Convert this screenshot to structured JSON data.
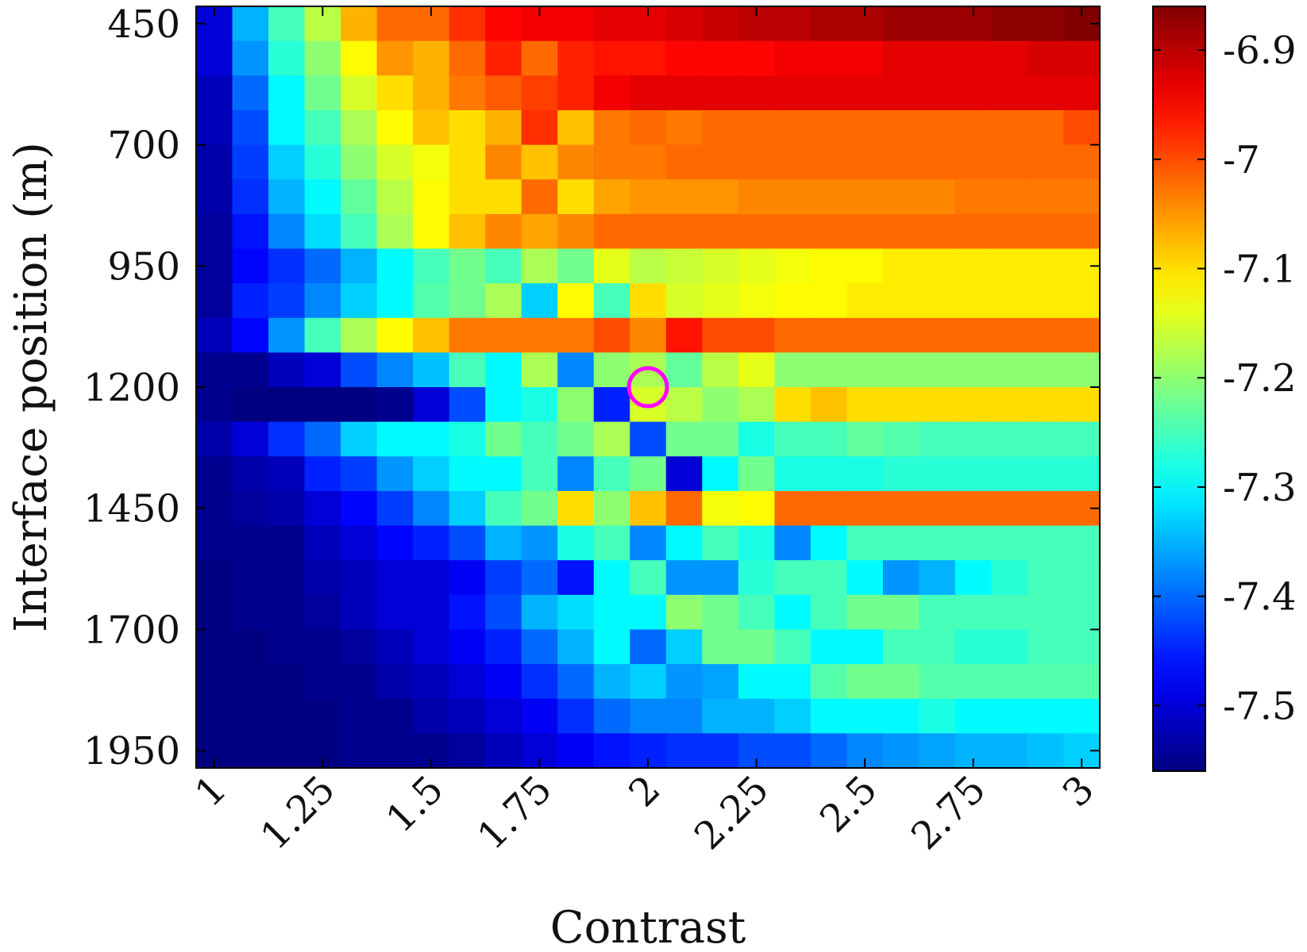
{
  "chart_data": {
    "type": "heatmap",
    "xlabel": "Contrast",
    "ylabel": "Interface position (m)",
    "x_range": [
      1,
      3
    ],
    "y_range": [
      450,
      1950
    ],
    "x_ticks": [
      {
        "value": 1,
        "label": "1"
      },
      {
        "value": 1.25,
        "label": "1.25"
      },
      {
        "value": 1.5,
        "label": "1.5"
      },
      {
        "value": 1.75,
        "label": "1.75"
      },
      {
        "value": 2,
        "label": "2"
      },
      {
        "value": 2.25,
        "label": "2.25"
      },
      {
        "value": 2.5,
        "label": "2.5"
      },
      {
        "value": 2.75,
        "label": "2.75"
      },
      {
        "value": 3,
        "label": "3"
      }
    ],
    "y_ticks": [
      {
        "value": 450,
        "label": "450"
      },
      {
        "value": 700,
        "label": "700"
      },
      {
        "value": 950,
        "label": "950"
      },
      {
        "value": 1200,
        "label": "1200"
      },
      {
        "value": 1450,
        "label": "1450"
      },
      {
        "value": 1700,
        "label": "1700"
      },
      {
        "value": 1950,
        "label": "1950"
      }
    ],
    "x_values": [
      1.0,
      1.0833,
      1.1667,
      1.25,
      1.3333,
      1.4167,
      1.5,
      1.5833,
      1.6667,
      1.75,
      1.8333,
      1.9167,
      2.0,
      2.0833,
      2.1667,
      2.25,
      2.3333,
      2.4167,
      2.5,
      2.5833,
      2.6667,
      2.75,
      2.8333,
      2.9167,
      3.0
    ],
    "y_values": [
      450,
      521.4,
      592.9,
      664.3,
      735.7,
      807.1,
      878.6,
      950,
      1021.4,
      1092.9,
      1164.3,
      1235.7,
      1307.1,
      1378.6,
      1450,
      1521.4,
      1592.9,
      1664.3,
      1735.7,
      1807.1,
      1878.6,
      1950
    ],
    "colorbar": {
      "colormap": "jet",
      "range": [
        -7.56,
        -6.86
      ],
      "ticks": [
        {
          "value": -6.9,
          "label": "-6.9"
        },
        {
          "value": -7.0,
          "label": "-7"
        },
        {
          "value": -7.1,
          "label": "-7.1"
        },
        {
          "value": -7.2,
          "label": "-7.2"
        },
        {
          "value": -7.3,
          "label": "-7.3"
        },
        {
          "value": -7.4,
          "label": "-7.4"
        },
        {
          "value": -7.5,
          "label": "-7.5"
        }
      ]
    },
    "marker": {
      "x": 2.0,
      "y": 1200,
      "shape": "circle",
      "color": "#ff00ff"
    },
    "z": [
      [
        -7.5,
        -7.35,
        -7.25,
        -7.17,
        -7.07,
        -7.02,
        -7.02,
        -6.98,
        -6.95,
        -6.94,
        -6.94,
        -6.93,
        -6.93,
        -6.92,
        -6.91,
        -6.9,
        -6.9,
        -6.89,
        -6.89,
        -6.88,
        -6.88,
        -6.88,
        -6.87,
        -6.87,
        -6.86
      ],
      [
        -7.5,
        -7.37,
        -7.27,
        -7.2,
        -7.12,
        -7.05,
        -7.07,
        -7.02,
        -6.97,
        -7.02,
        -6.97,
        -6.96,
        -6.96,
        -6.95,
        -6.95,
        -6.95,
        -6.94,
        -6.94,
        -6.94,
        -6.93,
        -6.93,
        -6.93,
        -6.93,
        -6.92,
        -6.92
      ],
      [
        -7.52,
        -7.4,
        -7.3,
        -7.22,
        -7.15,
        -7.1,
        -7.07,
        -7.03,
        -7.01,
        -6.99,
        -6.97,
        -6.94,
        -6.93,
        -6.93,
        -6.93,
        -6.93,
        -6.93,
        -6.93,
        -6.93,
        -6.93,
        -6.93,
        -6.93,
        -6.93,
        -6.93,
        -6.93
      ],
      [
        -7.52,
        -7.42,
        -7.3,
        -7.25,
        -7.18,
        -7.12,
        -7.08,
        -7.1,
        -7.07,
        -6.98,
        -7.08,
        -7.03,
        -7.02,
        -7.03,
        -7.02,
        -7.02,
        -7.02,
        -7.02,
        -7.02,
        -7.02,
        -7.02,
        -7.02,
        -7.02,
        -7.02,
        -7.0
      ],
      [
        -7.53,
        -7.43,
        -7.33,
        -7.27,
        -7.2,
        -7.15,
        -7.13,
        -7.1,
        -7.04,
        -7.08,
        -7.04,
        -7.03,
        -7.03,
        -7.02,
        -7.02,
        -7.02,
        -7.02,
        -7.02,
        -7.02,
        -7.02,
        -7.02,
        -7.02,
        -7.02,
        -7.02,
        -7.02
      ],
      [
        -7.53,
        -7.44,
        -7.35,
        -7.3,
        -7.23,
        -7.17,
        -7.12,
        -7.1,
        -7.1,
        -7.02,
        -7.1,
        -7.06,
        -7.05,
        -7.05,
        -7.05,
        -7.04,
        -7.04,
        -7.04,
        -7.04,
        -7.04,
        -7.04,
        -7.03,
        -7.03,
        -7.03,
        -7.03
      ],
      [
        -7.54,
        -7.46,
        -7.38,
        -7.32,
        -7.25,
        -7.18,
        -7.12,
        -7.08,
        -7.04,
        -7.06,
        -7.04,
        -7.02,
        -7.02,
        -7.02,
        -7.02,
        -7.02,
        -7.02,
        -7.02,
        -7.02,
        -7.02,
        -7.02,
        -7.02,
        -7.02,
        -7.02,
        -7.02
      ],
      [
        -7.54,
        -7.47,
        -7.44,
        -7.4,
        -7.35,
        -7.3,
        -7.25,
        -7.22,
        -7.25,
        -7.18,
        -7.22,
        -7.14,
        -7.17,
        -7.16,
        -7.15,
        -7.14,
        -7.13,
        -7.12,
        -7.12,
        -7.11,
        -7.11,
        -7.11,
        -7.11,
        -7.11,
        -7.11
      ],
      [
        -7.54,
        -7.45,
        -7.43,
        -7.38,
        -7.33,
        -7.3,
        -7.24,
        -7.22,
        -7.18,
        -7.33,
        -7.12,
        -7.25,
        -7.1,
        -7.15,
        -7.14,
        -7.13,
        -7.12,
        -7.12,
        -7.11,
        -7.11,
        -7.11,
        -7.11,
        -7.11,
        -7.11,
        -7.11
      ],
      [
        -7.52,
        -7.47,
        -7.37,
        -7.25,
        -7.18,
        -7.12,
        -7.08,
        -7.03,
        -7.03,
        -7.03,
        -7.03,
        -7.0,
        -7.04,
        -6.96,
        -7.0,
        -7.0,
        -7.02,
        -7.02,
        -7.02,
        -7.02,
        -7.02,
        -7.02,
        -7.02,
        -7.02,
        -7.02
      ],
      [
        -7.55,
        -7.55,
        -7.52,
        -7.5,
        -7.42,
        -7.38,
        -7.34,
        -7.25,
        -7.3,
        -7.18,
        -7.38,
        -7.2,
        -7.18,
        -7.23,
        -7.17,
        -7.14,
        -7.2,
        -7.2,
        -7.2,
        -7.2,
        -7.2,
        -7.2,
        -7.2,
        -7.2,
        -7.2
      ],
      [
        -7.55,
        -7.56,
        -7.58,
        -7.59,
        -7.57,
        -7.55,
        -7.5,
        -7.42,
        -7.3,
        -7.28,
        -7.2,
        -7.45,
        -7.15,
        -7.17,
        -7.2,
        -7.18,
        -7.1,
        -7.08,
        -7.1,
        -7.1,
        -7.1,
        -7.1,
        -7.1,
        -7.1,
        -7.1
      ],
      [
        -7.53,
        -7.5,
        -7.44,
        -7.4,
        -7.33,
        -7.3,
        -7.3,
        -7.28,
        -7.22,
        -7.25,
        -7.22,
        -7.18,
        -7.42,
        -7.22,
        -7.22,
        -7.28,
        -7.25,
        -7.25,
        -7.23,
        -7.24,
        -7.25,
        -7.25,
        -7.25,
        -7.25,
        -7.25
      ],
      [
        -7.55,
        -7.53,
        -7.52,
        -7.45,
        -7.43,
        -7.37,
        -7.33,
        -7.3,
        -7.3,
        -7.25,
        -7.38,
        -7.25,
        -7.22,
        -7.5,
        -7.3,
        -7.22,
        -7.28,
        -7.28,
        -7.28,
        -7.27,
        -7.27,
        -7.27,
        -7.27,
        -7.27,
        -7.27
      ],
      [
        -7.55,
        -7.54,
        -7.53,
        -7.5,
        -7.47,
        -7.43,
        -7.38,
        -7.33,
        -7.25,
        -7.22,
        -7.1,
        -7.2,
        -7.08,
        -7.02,
        -7.13,
        -7.12,
        -7.02,
        -7.02,
        -7.02,
        -7.02,
        -7.02,
        -7.02,
        -7.02,
        -7.02,
        -7.02
      ],
      [
        -7.55,
        -7.55,
        -7.55,
        -7.52,
        -7.5,
        -7.47,
        -7.45,
        -7.42,
        -7.35,
        -7.37,
        -7.28,
        -7.25,
        -7.38,
        -7.3,
        -7.25,
        -7.28,
        -7.38,
        -7.3,
        -7.25,
        -7.25,
        -7.25,
        -7.25,
        -7.25,
        -7.25,
        -7.25
      ],
      [
        -7.56,
        -7.55,
        -7.55,
        -7.53,
        -7.52,
        -7.5,
        -7.5,
        -7.48,
        -7.43,
        -7.4,
        -7.46,
        -7.3,
        -7.25,
        -7.37,
        -7.37,
        -7.27,
        -7.25,
        -7.25,
        -7.3,
        -7.37,
        -7.35,
        -7.3,
        -7.27,
        -7.25,
        -7.25
      ],
      [
        -7.56,
        -7.55,
        -7.55,
        -7.54,
        -7.52,
        -7.5,
        -7.5,
        -7.46,
        -7.42,
        -7.35,
        -7.32,
        -7.3,
        -7.3,
        -7.2,
        -7.22,
        -7.25,
        -7.3,
        -7.25,
        -7.22,
        -7.22,
        -7.25,
        -7.25,
        -7.25,
        -7.25,
        -7.25
      ],
      [
        -7.56,
        -7.56,
        -7.55,
        -7.55,
        -7.54,
        -7.52,
        -7.5,
        -7.48,
        -7.45,
        -7.4,
        -7.35,
        -7.3,
        -7.4,
        -7.33,
        -7.22,
        -7.22,
        -7.25,
        -7.3,
        -7.3,
        -7.25,
        -7.25,
        -7.27,
        -7.27,
        -7.25,
        -7.25
      ],
      [
        -7.56,
        -7.56,
        -7.56,
        -7.55,
        -7.55,
        -7.53,
        -7.52,
        -7.5,
        -7.48,
        -7.44,
        -7.4,
        -7.35,
        -7.33,
        -7.37,
        -7.36,
        -7.3,
        -7.3,
        -7.24,
        -7.22,
        -7.22,
        -7.24,
        -7.24,
        -7.24,
        -7.24,
        -7.24
      ],
      [
        -7.56,
        -7.56,
        -7.56,
        -7.56,
        -7.55,
        -7.55,
        -7.53,
        -7.52,
        -7.5,
        -7.48,
        -7.44,
        -7.4,
        -7.38,
        -7.38,
        -7.35,
        -7.35,
        -7.33,
        -7.3,
        -7.3,
        -7.3,
        -7.28,
        -7.3,
        -7.3,
        -7.3,
        -7.3
      ],
      [
        -7.56,
        -7.56,
        -7.56,
        -7.56,
        -7.55,
        -7.55,
        -7.55,
        -7.54,
        -7.52,
        -7.5,
        -7.48,
        -7.46,
        -7.45,
        -7.44,
        -7.44,
        -7.42,
        -7.42,
        -7.4,
        -7.38,
        -7.37,
        -7.36,
        -7.35,
        -7.35,
        -7.34,
        -7.33
      ]
    ]
  }
}
